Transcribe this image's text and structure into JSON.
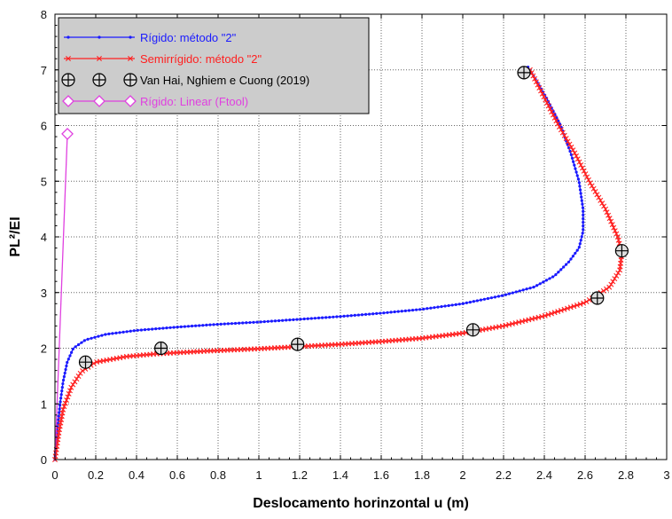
{
  "chart_data": {
    "type": "line",
    "xlabel": "Deslocamento horinzontal u (m)",
    "ylabel": "PL²/EI",
    "xlim": [
      0,
      3
    ],
    "ylim": [
      0,
      8
    ],
    "xticks": [
      "0",
      "0.2",
      "0.4",
      "0.6",
      "0.8",
      "1",
      "1.2",
      "1.4",
      "1.6",
      "1.8",
      "2",
      "2.2",
      "2.4",
      "2.6",
      "2.8",
      "3"
    ],
    "yticks": [
      "0",
      "1",
      "2",
      "3",
      "4",
      "5",
      "6",
      "7",
      "8"
    ],
    "grid": true,
    "legend_position": "top-left",
    "series": [
      {
        "name": "Rígido: método \"2\"",
        "color": "#1a1aff",
        "marker": "dot",
        "points": [
          [
            0,
            0
          ],
          [
            0.01,
            0.5
          ],
          [
            0.025,
            1.0
          ],
          [
            0.04,
            1.4
          ],
          [
            0.06,
            1.75
          ],
          [
            0.09,
            2.0
          ],
          [
            0.15,
            2.15
          ],
          [
            0.25,
            2.25
          ],
          [
            0.4,
            2.32
          ],
          [
            0.6,
            2.38
          ],
          [
            0.8,
            2.43
          ],
          [
            1.0,
            2.47
          ],
          [
            1.2,
            2.52
          ],
          [
            1.4,
            2.57
          ],
          [
            1.6,
            2.63
          ],
          [
            1.8,
            2.7
          ],
          [
            2.0,
            2.8
          ],
          [
            2.2,
            2.95
          ],
          [
            2.35,
            3.1
          ],
          [
            2.45,
            3.3
          ],
          [
            2.52,
            3.55
          ],
          [
            2.57,
            3.8
          ],
          [
            2.59,
            4.1
          ],
          [
            2.59,
            4.5
          ],
          [
            2.57,
            5.0
          ],
          [
            2.53,
            5.5
          ],
          [
            2.48,
            6.0
          ],
          [
            2.41,
            6.5
          ],
          [
            2.32,
            7.05
          ]
        ]
      },
      {
        "name": "Semirrígido: método \"2\"",
        "color": "#ff2020",
        "marker": "x",
        "points": [
          [
            0,
            0
          ],
          [
            0.02,
            0.5
          ],
          [
            0.04,
            0.9
          ],
          [
            0.08,
            1.3
          ],
          [
            0.13,
            1.58
          ],
          [
            0.2,
            1.75
          ],
          [
            0.35,
            1.85
          ],
          [
            0.5,
            1.9
          ],
          [
            0.75,
            1.95
          ],
          [
            1.0,
            1.99
          ],
          [
            1.2,
            2.03
          ],
          [
            1.4,
            2.07
          ],
          [
            1.6,
            2.12
          ],
          [
            1.8,
            2.18
          ],
          [
            2.0,
            2.27
          ],
          [
            2.2,
            2.4
          ],
          [
            2.4,
            2.58
          ],
          [
            2.6,
            2.82
          ],
          [
            2.72,
            3.1
          ],
          [
            2.77,
            3.4
          ],
          [
            2.78,
            3.7
          ],
          [
            2.76,
            4.0
          ],
          [
            2.7,
            4.5
          ],
          [
            2.62,
            5.0
          ],
          [
            2.55,
            5.5
          ],
          [
            2.47,
            6.0
          ],
          [
            2.4,
            6.5
          ],
          [
            2.33,
            7.0
          ]
        ]
      },
      {
        "name": "Rígido: Linear (Ftool)",
        "color": "#e040e0",
        "marker": "diamond",
        "points": [
          [
            0,
            0
          ],
          [
            0.061,
            5.85
          ]
        ]
      }
    ],
    "reference_points": {
      "name": "Van Hai, Nghiem e Cuong (2019)",
      "color": "#000000",
      "marker": "circle-plus",
      "points": [
        [
          0.15,
          1.75
        ],
        [
          0.52,
          2.0
        ],
        [
          1.19,
          2.07
        ],
        [
          2.05,
          2.33
        ],
        [
          2.66,
          2.9
        ],
        [
          2.78,
          3.75
        ],
        [
          2.3,
          6.95
        ]
      ]
    }
  }
}
